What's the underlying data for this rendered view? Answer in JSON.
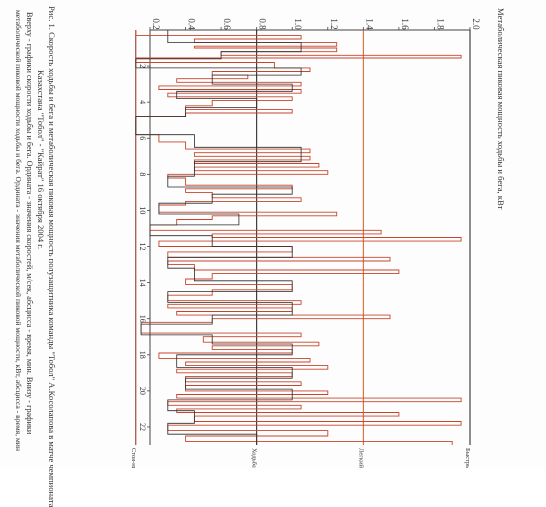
{
  "chart_data": {
    "type": "line",
    "title": "Метаболическая пиковая мощность ходьбы и бега, кВт",
    "value_axis": {
      "ticks": [
        "0.2",
        "0.4",
        "0.6",
        "0.8",
        "1.0",
        "1.2",
        "1.4",
        "1.6",
        "1.8",
        "2.0"
      ],
      "range": [
        0.2,
        2.0
      ]
    },
    "time_axis": {
      "ticks": [
        "2",
        "4",
        "6",
        "8",
        "10",
        "12",
        "14",
        "16",
        "18",
        "20",
        "22"
      ],
      "range": [
        0,
        23
      ]
    },
    "reference_lines": [
      {
        "label": "Стоя-ние",
        "value": 0.12,
        "color": "#8a2a12"
      },
      {
        "label": "Ходьба",
        "value": 0.8,
        "color": "#1a1a1a"
      },
      {
        "label": "Легкий бег",
        "value": 1.4,
        "color": "#d85a22"
      },
      {
        "label": "Быстрый бег",
        "value": 2.0,
        "color": "#1a1a1a"
      }
    ],
    "series": [
      {
        "color": "#c8452a",
        "points": [
          [
            0.0,
            0.12
          ],
          [
            0.3,
            0.12
          ],
          [
            0.3,
            1.05
          ],
          [
            0.5,
            1.05
          ],
          [
            0.5,
            0.45
          ],
          [
            0.7,
            0.45
          ],
          [
            0.7,
            1.25
          ],
          [
            0.9,
            1.25
          ],
          [
            0.9,
            0.45
          ],
          [
            1.0,
            0.45
          ],
          [
            1.0,
            1.25
          ],
          [
            1.2,
            1.25
          ],
          [
            1.2,
            0.6
          ],
          [
            1.4,
            0.6
          ],
          [
            1.4,
            1.95
          ],
          [
            1.55,
            1.95
          ],
          [
            1.55,
            0.12
          ],
          [
            1.8,
            0.12
          ],
          [
            1.8,
            0.9
          ],
          [
            2.1,
            0.9
          ],
          [
            2.1,
            1.1
          ],
          [
            2.3,
            1.1
          ],
          [
            2.3,
            0.55
          ],
          [
            2.5,
            0.55
          ],
          [
            2.5,
            0.75
          ],
          [
            2.7,
            0.75
          ],
          [
            2.7,
            0.35
          ],
          [
            2.9,
            0.35
          ],
          [
            2.9,
            1.05
          ],
          [
            3.1,
            1.05
          ],
          [
            3.1,
            0.25
          ],
          [
            3.3,
            0.25
          ],
          [
            3.3,
            1.05
          ],
          [
            3.5,
            1.05
          ],
          [
            3.5,
            0.3
          ],
          [
            3.7,
            0.3
          ],
          [
            3.7,
            1.0
          ],
          [
            3.9,
            1.0
          ],
          [
            3.9,
            0.55
          ],
          [
            4.2,
            0.55
          ],
          [
            4.2,
            0.4
          ],
          [
            4.4,
            0.4
          ],
          [
            4.4,
            1.0
          ],
          [
            4.6,
            1.0
          ],
          [
            4.6,
            0.4
          ],
          [
            4.8,
            0.4
          ],
          [
            4.8,
            0.12
          ],
          [
            5.8,
            0.12
          ],
          [
            5.8,
            0.25
          ],
          [
            6.2,
            0.25
          ],
          [
            6.2,
            0.4
          ],
          [
            6.6,
            0.4
          ],
          [
            6.6,
            1.1
          ],
          [
            6.8,
            1.1
          ],
          [
            6.8,
            0.45
          ],
          [
            7.0,
            0.45
          ],
          [
            7.0,
            1.1
          ],
          [
            7.2,
            1.1
          ],
          [
            7.2,
            0.45
          ],
          [
            7.4,
            0.45
          ],
          [
            7.4,
            1.15
          ],
          [
            7.6,
            1.15
          ],
          [
            7.6,
            0.45
          ],
          [
            7.8,
            0.45
          ],
          [
            7.8,
            1.2
          ],
          [
            8.0,
            1.2
          ],
          [
            8.0,
            0.3
          ],
          [
            8.2,
            0.3
          ],
          [
            8.2,
            0.4
          ],
          [
            8.6,
            0.4
          ],
          [
            8.6,
            1.0
          ],
          [
            8.8,
            1.0
          ],
          [
            8.8,
            0.4
          ],
          [
            9.0,
            0.4
          ],
          [
            9.0,
            0.55
          ],
          [
            9.3,
            0.55
          ],
          [
            9.3,
            1.05
          ],
          [
            9.5,
            1.05
          ],
          [
            9.5,
            0.4
          ],
          [
            9.7,
            0.4
          ],
          [
            9.7,
            0.25
          ],
          [
            10.1,
            0.25
          ],
          [
            10.1,
            1.25
          ],
          [
            10.3,
            1.25
          ],
          [
            10.3,
            0.55
          ],
          [
            10.5,
            0.55
          ],
          [
            10.5,
            0.35
          ],
          [
            10.8,
            0.35
          ],
          [
            10.8,
            0.2
          ],
          [
            11.1,
            0.2
          ],
          [
            11.1,
            1.5
          ],
          [
            11.3,
            1.5
          ],
          [
            11.3,
            0.55
          ],
          [
            11.5,
            0.55
          ],
          [
            11.5,
            1.95
          ],
          [
            11.7,
            1.95
          ],
          [
            11.7,
            0.25
          ],
          [
            12.0,
            0.25
          ],
          [
            12.0,
            1.0
          ],
          [
            12.3,
            1.0
          ],
          [
            12.3,
            0.3
          ],
          [
            12.6,
            0.3
          ],
          [
            12.6,
            1.55
          ],
          [
            12.8,
            1.55
          ],
          [
            12.8,
            0.3
          ],
          [
            13.0,
            0.3
          ],
          [
            13.0,
            0.45
          ],
          [
            13.3,
            0.45
          ],
          [
            13.3,
            1.6
          ],
          [
            13.5,
            1.6
          ],
          [
            13.5,
            0.55
          ],
          [
            13.8,
            0.55
          ],
          [
            13.8,
            0.4
          ],
          [
            14.1,
            0.4
          ],
          [
            14.1,
            1.0
          ],
          [
            14.4,
            1.0
          ],
          [
            14.4,
            0.55
          ],
          [
            14.7,
            0.55
          ],
          [
            14.7,
            0.3
          ],
          [
            15.0,
            0.3
          ],
          [
            15.0,
            1.05
          ],
          [
            15.2,
            1.05
          ],
          [
            15.2,
            0.3
          ],
          [
            15.4,
            0.3
          ],
          [
            15.4,
            1.0
          ],
          [
            15.6,
            1.0
          ],
          [
            15.6,
            0.35
          ],
          [
            15.8,
            0.35
          ],
          [
            15.8,
            1.55
          ],
          [
            16.0,
            1.55
          ],
          [
            16.0,
            0.55
          ],
          [
            16.2,
            0.55
          ],
          [
            16.2,
            0.15
          ],
          [
            16.8,
            0.15
          ],
          [
            16.8,
            1.05
          ],
          [
            17.0,
            1.05
          ],
          [
            17.0,
            0.5
          ],
          [
            17.3,
            0.5
          ],
          [
            17.3,
            1.15
          ],
          [
            17.5,
            1.15
          ],
          [
            17.5,
            0.55
          ],
          [
            17.7,
            0.55
          ],
          [
            17.7,
            1.0
          ],
          [
            17.9,
            1.0
          ],
          [
            17.9,
            0.25
          ],
          [
            18.2,
            0.25
          ],
          [
            18.2,
            1.1
          ],
          [
            18.4,
            1.1
          ],
          [
            18.4,
            0.4
          ],
          [
            18.6,
            0.4
          ],
          [
            18.6,
            1.2
          ],
          [
            18.8,
            1.2
          ],
          [
            18.8,
            0.35
          ],
          [
            19.0,
            0.35
          ],
          [
            19.0,
            1.0
          ],
          [
            19.2,
            1.0
          ],
          [
            19.2,
            0.4
          ],
          [
            19.5,
            0.4
          ],
          [
            19.5,
            1.05
          ],
          [
            19.7,
            1.05
          ],
          [
            19.7,
            0.4
          ],
          [
            20.0,
            0.4
          ],
          [
            20.0,
            1.2
          ],
          [
            20.2,
            1.2
          ],
          [
            20.2,
            0.35
          ],
          [
            20.4,
            0.35
          ],
          [
            20.4,
            1.95
          ],
          [
            20.6,
            1.95
          ],
          [
            20.6,
            0.3
          ],
          [
            20.8,
            0.3
          ],
          [
            20.8,
            1.05
          ],
          [
            21.0,
            1.05
          ],
          [
            21.0,
            0.35
          ],
          [
            21.2,
            0.35
          ],
          [
            21.2,
            1.6
          ],
          [
            21.4,
            1.6
          ],
          [
            21.4,
            0.45
          ],
          [
            21.7,
            0.45
          ],
          [
            21.7,
            1.95
          ],
          [
            21.9,
            1.95
          ],
          [
            21.9,
            0.3
          ],
          [
            22.2,
            0.3
          ],
          [
            22.2,
            1.2
          ],
          [
            22.5,
            1.2
          ],
          [
            22.5,
            0.4
          ],
          [
            22.8,
            0.4
          ],
          [
            22.8,
            1.9
          ],
          [
            23.0,
            1.9
          ]
        ]
      },
      {
        "color": "#2a2a2a",
        "points": [
          [
            0.0,
            0.3
          ],
          [
            0.7,
            0.3
          ],
          [
            0.7,
            1.05
          ],
          [
            1.2,
            1.05
          ],
          [
            1.2,
            0.6
          ],
          [
            1.6,
            0.6
          ],
          [
            1.6,
            0.12
          ],
          [
            2.1,
            0.12
          ],
          [
            2.1,
            1.05
          ],
          [
            2.5,
            1.05
          ],
          [
            2.5,
            0.55
          ],
          [
            3.0,
            0.55
          ],
          [
            3.0,
            1.0
          ],
          [
            3.4,
            1.0
          ],
          [
            3.4,
            0.35
          ],
          [
            3.8,
            0.35
          ],
          [
            3.8,
            0.8
          ],
          [
            4.3,
            0.8
          ],
          [
            4.3,
            0.4
          ],
          [
            4.8,
            0.4
          ],
          [
            4.8,
            0.12
          ],
          [
            5.8,
            0.12
          ],
          [
            5.8,
            0.45
          ],
          [
            6.5,
            0.45
          ],
          [
            6.5,
            1.05
          ],
          [
            7.3,
            1.05
          ],
          [
            7.3,
            0.45
          ],
          [
            8.1,
            0.45
          ],
          [
            8.1,
            0.3
          ],
          [
            8.7,
            0.3
          ],
          [
            8.7,
            1.0
          ],
          [
            9.1,
            1.0
          ],
          [
            9.1,
            0.55
          ],
          [
            9.6,
            0.55
          ],
          [
            9.6,
            0.25
          ],
          [
            10.2,
            0.25
          ],
          [
            10.2,
            0.7
          ],
          [
            10.8,
            0.7
          ],
          [
            10.8,
            0.2
          ],
          [
            11.4,
            0.2
          ],
          [
            11.4,
            0.55
          ],
          [
            12.0,
            0.55
          ],
          [
            12.0,
            1.0
          ],
          [
            12.6,
            1.0
          ],
          [
            12.6,
            0.3
          ],
          [
            13.2,
            0.3
          ],
          [
            13.2,
            0.45
          ],
          [
            13.9,
            0.45
          ],
          [
            13.9,
            1.0
          ],
          [
            14.5,
            1.0
          ],
          [
            14.5,
            0.3
          ],
          [
            15.1,
            0.3
          ],
          [
            15.1,
            1.0
          ],
          [
            15.8,
            1.0
          ],
          [
            15.8,
            0.55
          ],
          [
            16.3,
            0.55
          ],
          [
            16.3,
            0.15
          ],
          [
            16.9,
            0.15
          ],
          [
            16.9,
            0.55
          ],
          [
            17.4,
            0.55
          ],
          [
            17.4,
            1.0
          ],
          [
            18.0,
            1.0
          ],
          [
            18.0,
            0.35
          ],
          [
            18.7,
            0.35
          ],
          [
            18.7,
            1.0
          ],
          [
            19.3,
            1.0
          ],
          [
            19.3,
            0.4
          ],
          [
            19.9,
            0.4
          ],
          [
            19.9,
            1.0
          ],
          [
            20.5,
            1.0
          ],
          [
            20.5,
            0.3
          ],
          [
            21.1,
            0.3
          ],
          [
            21.1,
            0.45
          ],
          [
            21.8,
            0.45
          ],
          [
            21.8,
            0.3
          ],
          [
            22.4,
            0.3
          ],
          [
            22.4,
            0.8
          ],
          [
            23.0,
            0.8
          ]
        ]
      }
    ]
  },
  "caption": {
    "line1": "Рис. 1. Скорость ходьбы и бега и метаболическая пиковая мощность полузащитника команды \"Тобол\" А.Косолапова в матче чемпионата",
    "line2": "Казахстана \"Тобол\" - \"Кайрат\" 16 октября 2004 г.",
    "line3": "Вверху - графики скорости ходьбы и бега. Ордината - значения скоростей, м/сек, абсцисса - время, мин. Внизу - графики",
    "line4": "метаболической пиковой мощности ходьбы и бега. Ордината - значения метаболической пиковой мощности, кВт, абсцисса - время, мин"
  }
}
